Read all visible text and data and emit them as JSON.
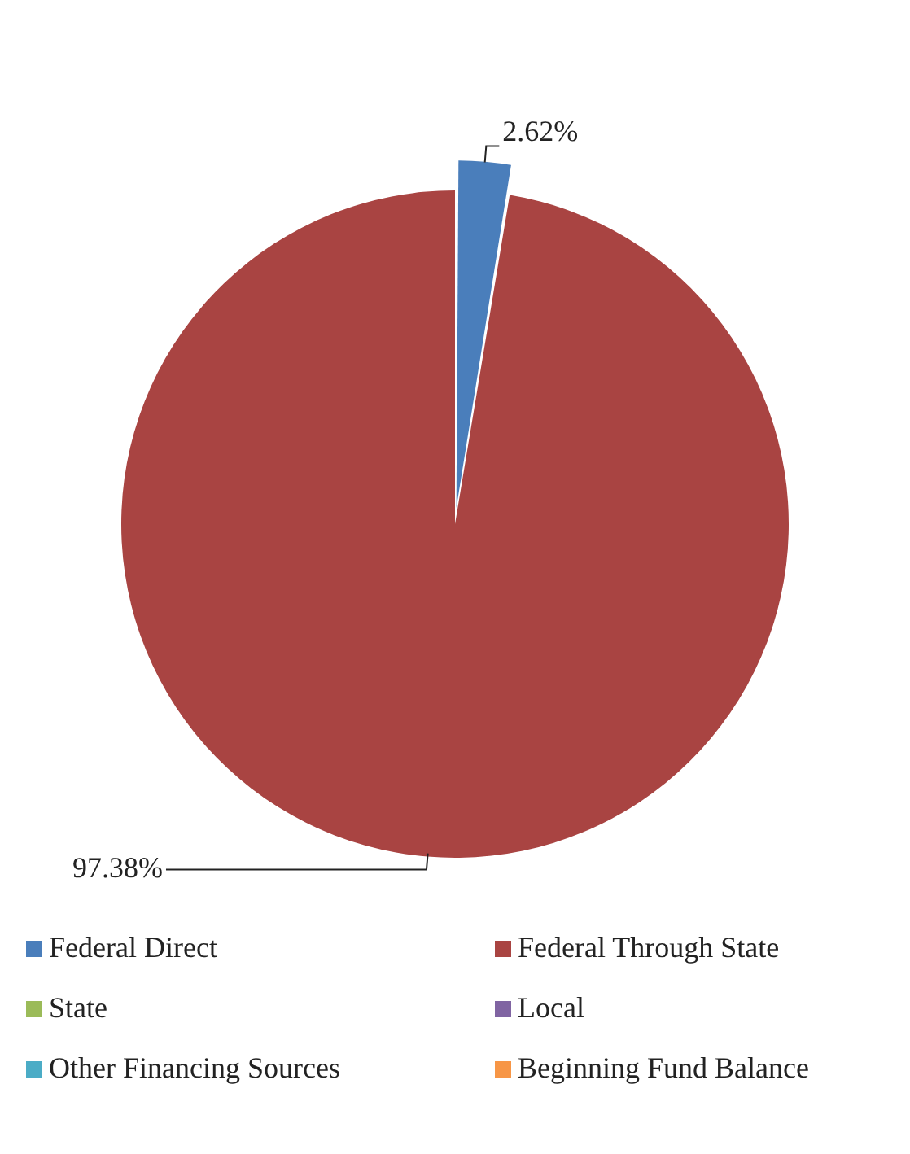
{
  "chart_data": {
    "type": "pie",
    "categories": [
      "Federal Direct",
      "Federal Through State",
      "State",
      "Local",
      "Other Financing Sources",
      "Beginning Fund Balance"
    ],
    "values": [
      2.62,
      97.38,
      0,
      0,
      0,
      0
    ],
    "colors": [
      "#4a7ebb",
      "#a94442",
      "#9bbb59",
      "#8064a2",
      "#4bacc6",
      "#f79646"
    ],
    "value_labels": [
      "2.62%",
      "97.38%",
      null,
      null,
      null,
      null
    ],
    "legend": "bottom"
  }
}
